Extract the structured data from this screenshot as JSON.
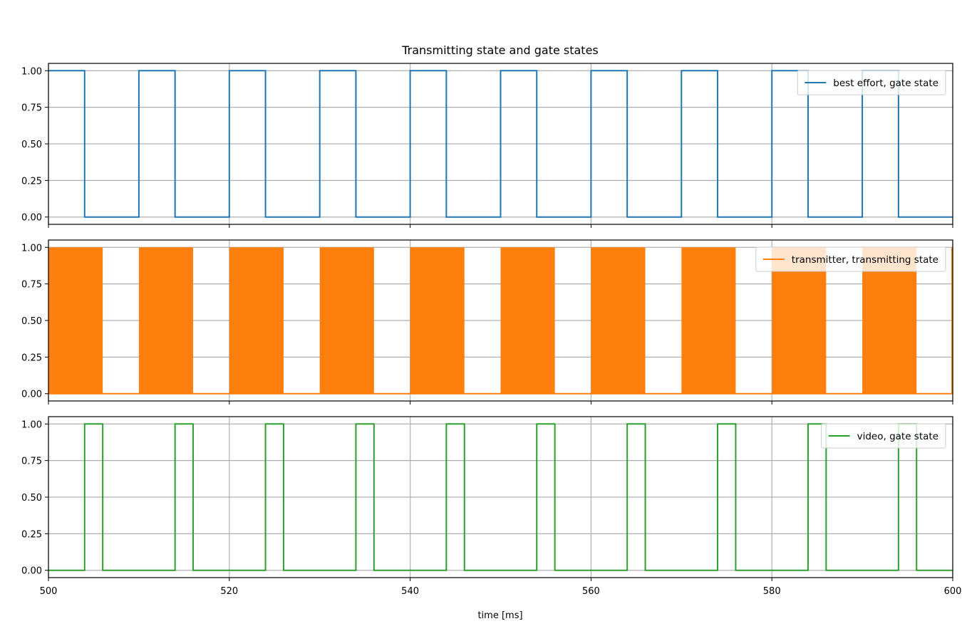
{
  "chart_data": {
    "type": "line",
    "title": "Transmitting state and gate states",
    "xlabel": "time [ms]",
    "xlim": [
      500,
      600
    ],
    "ylim": [
      -0.05,
      1.05
    ],
    "x_ticks": [
      "500",
      "520",
      "540",
      "560",
      "580",
      "600"
    ],
    "x_tick_values": [
      500,
      520,
      540,
      560,
      580,
      600
    ],
    "y_ticks": [
      "0.00",
      "0.25",
      "0.50",
      "0.75",
      "1.00"
    ],
    "y_tick_values": [
      0,
      0.25,
      0.5,
      0.75,
      1.0
    ],
    "grid": true,
    "legend_position": "upper right",
    "panels": [
      {
        "series": [
          {
            "name": "best effort, gate state",
            "color": "#1f77b4",
            "step": "post",
            "x": [
              500,
              504,
              510,
              514,
              520,
              524,
              530,
              534,
              540,
              544,
              550,
              554,
              560,
              564,
              570,
              574,
              580,
              584,
              590,
              594,
              600
            ],
            "y": [
              1,
              0,
              1,
              0,
              1,
              0,
              1,
              0,
              1,
              0,
              1,
              0,
              1,
              0,
              1,
              0,
              1,
              0,
              1,
              0,
              0
            ]
          }
        ]
      },
      {
        "series": [
          {
            "name": "transmitter, transmitting state",
            "color": "#ff7f0e",
            "style": "filled-toggling",
            "active_intervals": [
              [
                500,
                506
              ],
              [
                510,
                516
              ],
              [
                520,
                526
              ],
              [
                530,
                536
              ],
              [
                540,
                546
              ],
              [
                550,
                556
              ],
              [
                560,
                566
              ],
              [
                570,
                576
              ],
              [
                580,
                586
              ],
              [
                590,
                596
              ]
            ],
            "x": [
              500,
              506,
              510,
              516,
              520,
              526,
              530,
              536,
              540,
              546,
              550,
              556,
              560,
              566,
              570,
              576,
              580,
              586,
              590,
              596,
              600
            ],
            "y": [
              1,
              0,
              1,
              0,
              1,
              0,
              1,
              0,
              1,
              0,
              1,
              0,
              1,
              0,
              1,
              0,
              1,
              0,
              1,
              0,
              0
            ]
          }
        ]
      },
      {
        "series": [
          {
            "name": "video, gate state",
            "color": "#2ca02c",
            "step": "post",
            "x": [
              500,
              504,
              506,
              514,
              516,
              524,
              526,
              534,
              536,
              544,
              546,
              554,
              556,
              564,
              566,
              574,
              576,
              584,
              586,
              594,
              596,
              600
            ],
            "y": [
              0,
              1,
              0,
              1,
              0,
              1,
              0,
              1,
              0,
              1,
              0,
              1,
              0,
              1,
              0,
              1,
              0,
              1,
              0,
              1,
              0,
              0
            ]
          }
        ]
      }
    ]
  }
}
